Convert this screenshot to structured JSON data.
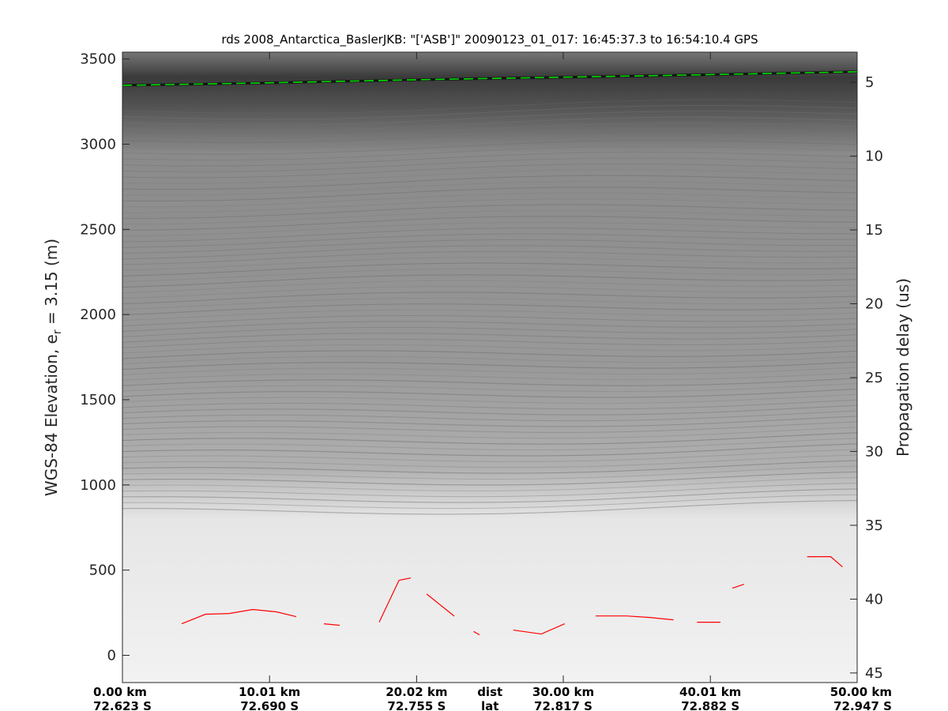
{
  "chart_data": {
    "type": "line",
    "title": "rds 2008_Antarctica_BaslerJKB: \"['ASB']\"  20090123_01_017: 16:45:37.3 to 16:54:10.4 GPS",
    "ylabel": "WGS-84 Elevation, e",
    "ylabel_sub": "r",
    "ylabel_tail": " = 3.15 (m)",
    "y2label": "Propagation delay (us)",
    "ylim": [
      -160,
      3540
    ],
    "y_ticks": [
      "0",
      "500",
      "1000",
      "1500",
      "2000",
      "2500",
      "3000",
      "3500"
    ],
    "y_tick_values": [
      0,
      500,
      1000,
      1500,
      2000,
      2500,
      3000,
      3500
    ],
    "y2_ticks": [
      "5",
      "10",
      "15",
      "20",
      "25",
      "30",
      "35",
      "40",
      "45"
    ],
    "y2_tick_values": [
      5,
      10,
      15,
      20,
      25,
      30,
      35,
      40,
      45
    ],
    "y2lim": [
      2.96,
      45.65
    ],
    "xlim": [
      0,
      50
    ],
    "x_tick_values": [
      0,
      10.01,
      20.02,
      30.0,
      40.01,
      50.0
    ],
    "x_dist_labels": [
      "0.00 km",
      "10.01 km",
      "20.02 km",
      "30.00 km",
      "40.01 km",
      "50.00 km"
    ],
    "x_lat_labels": [
      "72.623 S",
      "72.690 S",
      "72.755 S",
      "72.817 S",
      "72.882 S",
      "72.947 S"
    ],
    "x_row_names": [
      "dist",
      "lat"
    ],
    "background": "radar echogram (grayscale)",
    "series": [
      {
        "color": "#00dd00",
        "style": "dashed",
        "x": [
          0,
          10,
          20,
          30,
          40,
          50
        ],
        "y": [
          3345,
          3360,
          3378,
          3393,
          3408,
          3425
        ]
      },
      {
        "color": "#ff0000",
        "style": "segments",
        "x": [
          4.03,
          5.65,
          7.26,
          8.87,
          10.48,
          11.83,
          null,
          13.71,
          14.78,
          null,
          17.47,
          18.82,
          19.62,
          null,
          20.7,
          22.58,
          null,
          23.9,
          24.3,
          null,
          26.6,
          28.5,
          30.1,
          null,
          32.2,
          34.3,
          35.9,
          37.5,
          null,
          39.1,
          40.7,
          null,
          41.5,
          42.3,
          null,
          46.6,
          48.2,
          49.0
        ],
        "y": [
          185,
          241,
          245,
          269,
          255,
          227,
          null,
          185,
          176,
          null,
          194,
          440,
          454,
          null,
          360,
          230,
          null,
          140,
          120,
          null,
          148,
          125,
          185,
          null,
          231,
          231,
          222,
          208,
          null,
          194,
          194,
          null,
          394,
          417,
          null,
          579,
          579,
          519
        ]
      }
    ]
  }
}
